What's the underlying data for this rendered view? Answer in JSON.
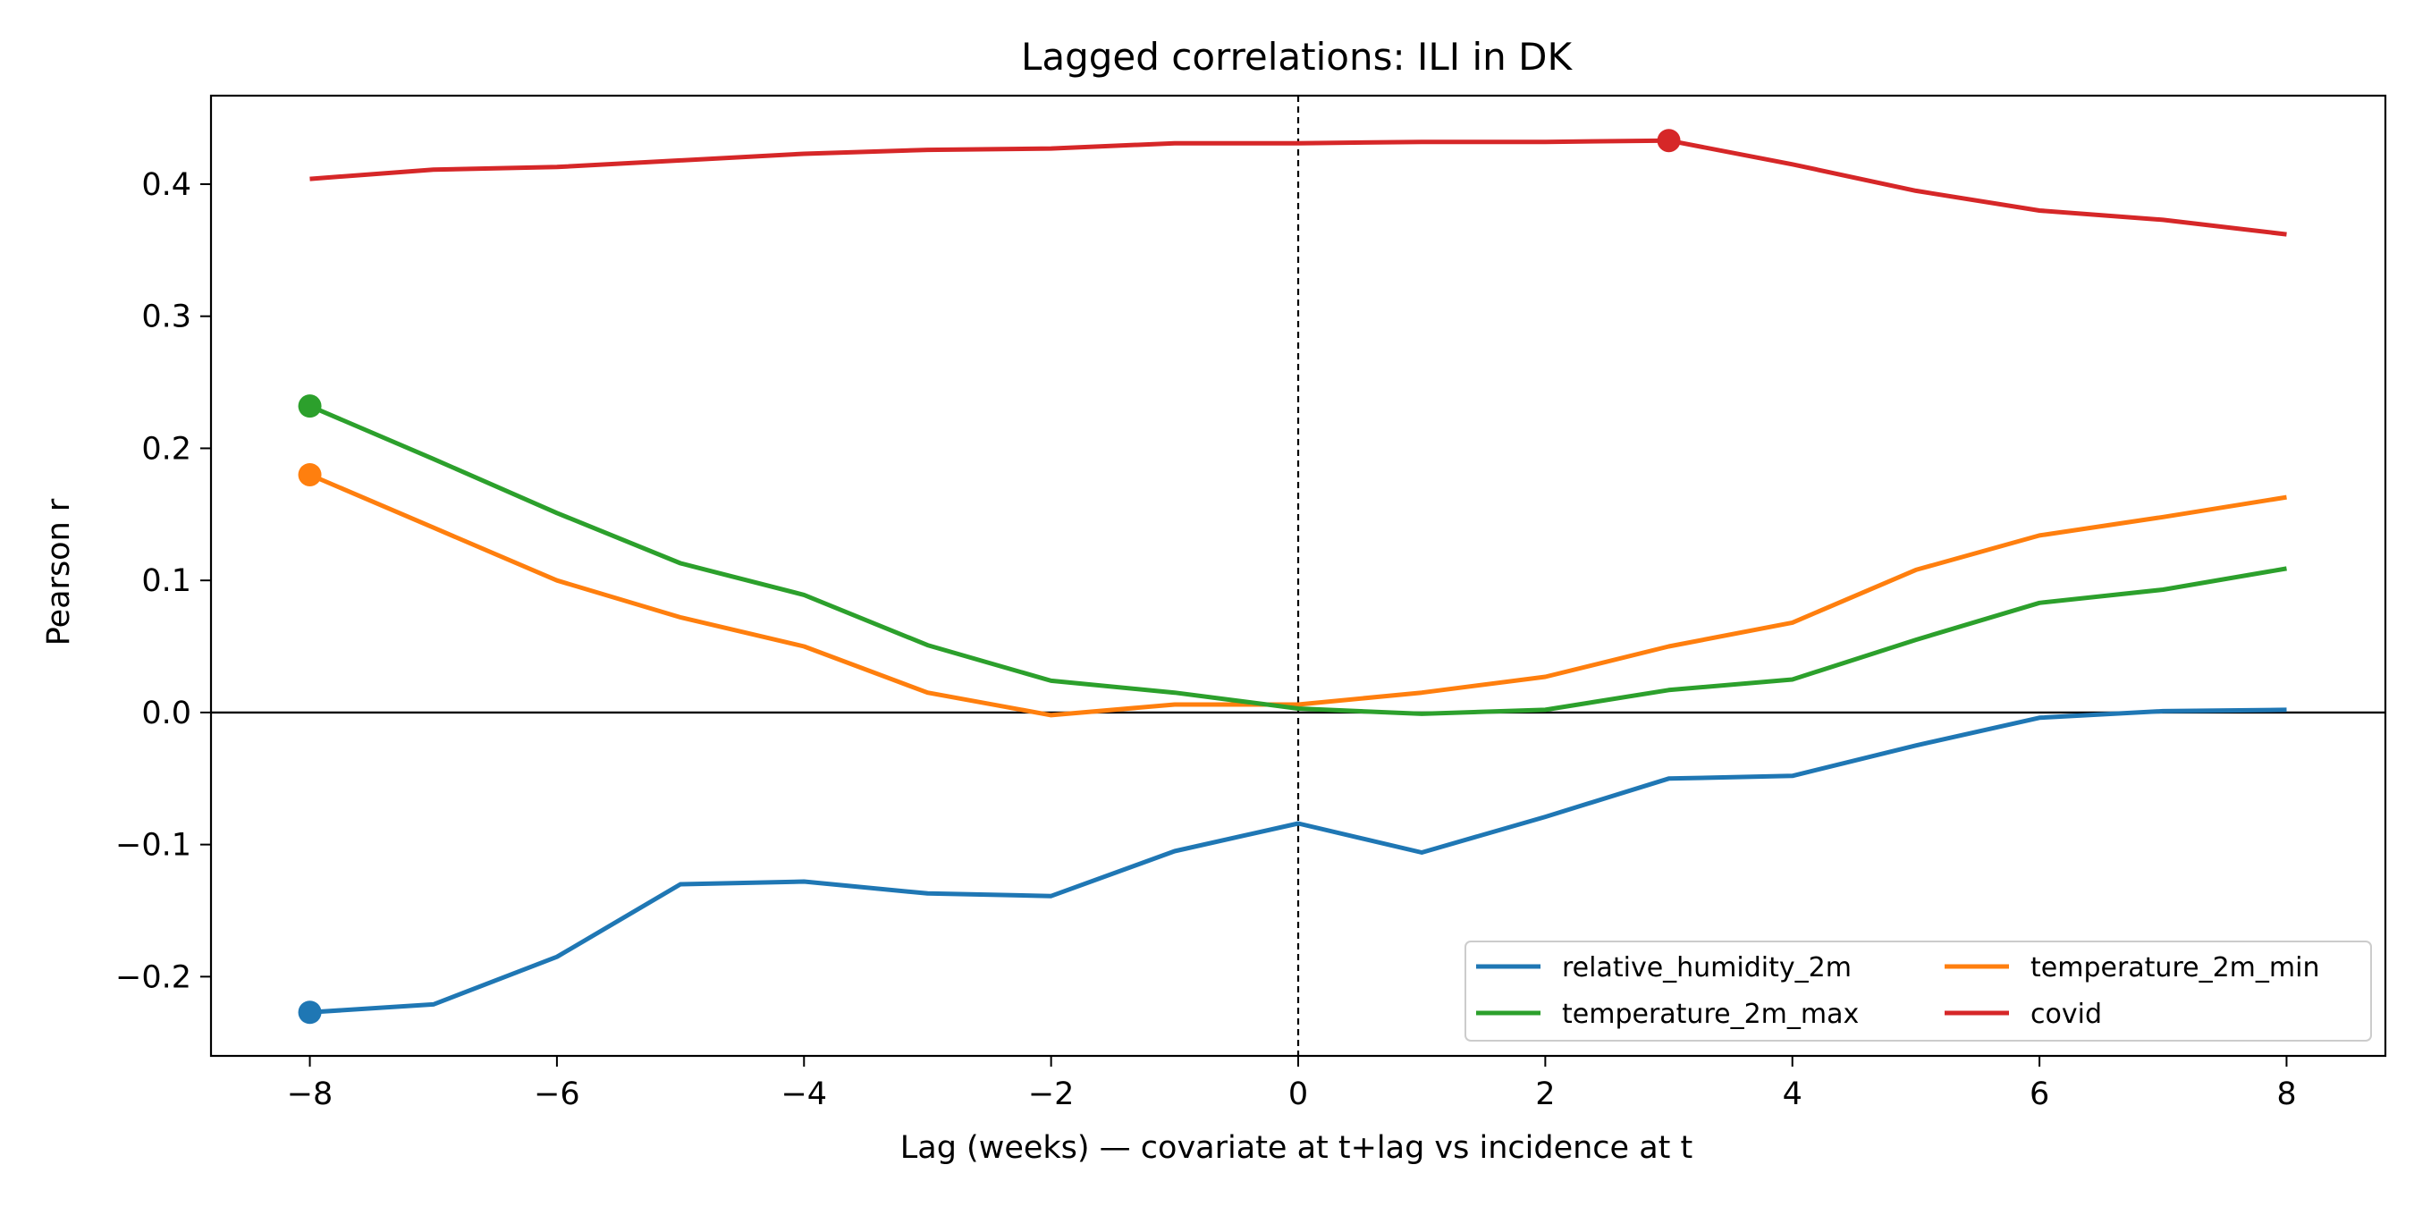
{
  "chart_data": {
    "type": "line",
    "title": "Lagged correlations: ILI in DK",
    "xlabel": "Lag (weeks) — covariate at t+lag vs incidence at t",
    "ylabel": "Pearson r",
    "xlim": [
      -8.8,
      8.8
    ],
    "ylim": [
      -0.26,
      0.467
    ],
    "x_ticks": [
      -8,
      -6,
      -4,
      -2,
      0,
      2,
      4,
      6,
      8
    ],
    "x_tick_labels": [
      "−8",
      "−6",
      "−4",
      "−2",
      "0",
      "2",
      "4",
      "6",
      "8"
    ],
    "y_ticks": [
      -0.2,
      -0.1,
      0.0,
      0.1,
      0.2,
      0.3,
      0.4
    ],
    "y_tick_labels": [
      "−0.2",
      "−0.1",
      "0.0",
      "0.1",
      "0.2",
      "0.3",
      "0.4"
    ],
    "grid": false,
    "legend_position": "bottom-right",
    "reference_lines": {
      "horizontal_y": 0,
      "vertical_dashed_x": 0
    },
    "x": [
      -8,
      -7,
      -6,
      -5,
      -4,
      -3,
      -2,
      -1,
      0,
      1,
      2,
      3,
      4,
      5,
      6,
      7,
      8
    ],
    "series": [
      {
        "name": "relative_humidity_2m",
        "color": "#1f77b4",
        "values": [
          -0.227,
          -0.221,
          -0.185,
          -0.13,
          -0.128,
          -0.137,
          -0.139,
          -0.105,
          -0.084,
          -0.106,
          -0.079,
          -0.05,
          -0.048,
          -0.025,
          -0.004,
          0.001,
          0.002
        ],
        "highlight_x": -8
      },
      {
        "name": "temperature_2m_min",
        "color": "#ff7f0e",
        "values": [
          0.18,
          0.14,
          0.1,
          0.072,
          0.05,
          0.015,
          -0.002,
          0.006,
          0.006,
          0.015,
          0.027,
          0.05,
          0.068,
          0.108,
          0.134,
          0.148,
          0.163
        ],
        "highlight_x": -8
      },
      {
        "name": "temperature_2m_max",
        "color": "#2ca02c",
        "values": [
          0.232,
          0.192,
          0.151,
          0.113,
          0.089,
          0.051,
          0.024,
          0.015,
          0.003,
          -0.001,
          0.002,
          0.017,
          0.025,
          0.055,
          0.083,
          0.093,
          0.109
        ],
        "highlight_x": -8
      },
      {
        "name": "covid",
        "color": "#d62728",
        "values": [
          0.404,
          0.411,
          0.413,
          0.418,
          0.423,
          0.426,
          0.427,
          0.431,
          0.431,
          0.432,
          0.432,
          0.433,
          0.415,
          0.395,
          0.38,
          0.373,
          0.362
        ],
        "highlight_x": 3
      }
    ]
  }
}
